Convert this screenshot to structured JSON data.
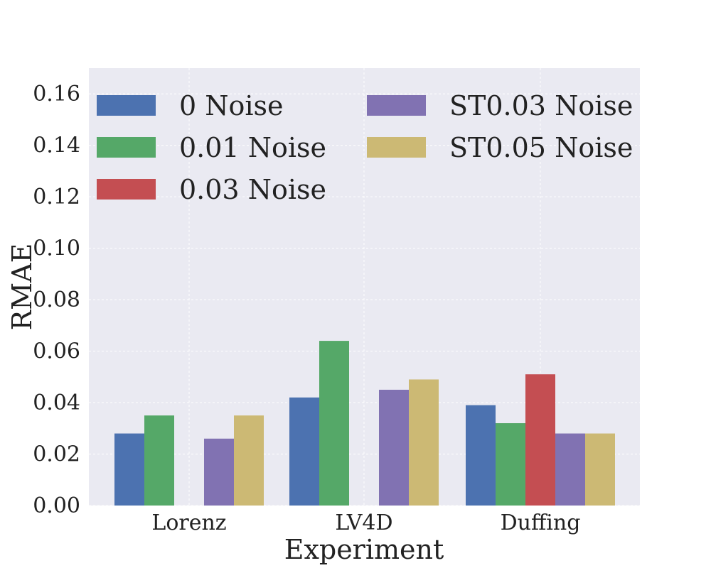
{
  "chart_data": {
    "type": "bar",
    "title": "",
    "xlabel": "Experiment",
    "ylabel": "RMAE",
    "ylim": [
      0,
      0.17
    ],
    "yticks": [
      "0.00",
      "0.02",
      "0.04",
      "0.06",
      "0.08",
      "0.10",
      "0.12",
      "0.14",
      "0.16"
    ],
    "ytick_values": [
      0,
      0.02,
      0.04,
      0.06,
      0.08,
      0.1,
      0.12,
      0.14,
      0.16
    ],
    "grid": true,
    "legend_position": "top",
    "categories": [
      "Lorenz",
      "LV4D",
      "Duffing"
    ],
    "series": [
      {
        "name": "0 Noise",
        "color": "#4c72b0",
        "values": [
          0.028,
          0.042,
          0.039
        ]
      },
      {
        "name": "0.01 Noise",
        "color": "#55a868",
        "values": [
          0.035,
          0.064,
          0.032
        ]
      },
      {
        "name": "0.03 Noise",
        "color": "#c44e52",
        "values": [
          0.0,
          0.0,
          0.051
        ]
      },
      {
        "name": "ST0.03 Noise",
        "color": "#8172b2",
        "values": [
          0.026,
          0.045,
          0.028
        ]
      },
      {
        "name": "ST0.05 Noise",
        "color": "#ccb974",
        "values": [
          0.035,
          0.049,
          0.028
        ]
      }
    ],
    "colors": {
      "plot_background": "#eaeaf2",
      "grid": "#ffffff"
    }
  }
}
